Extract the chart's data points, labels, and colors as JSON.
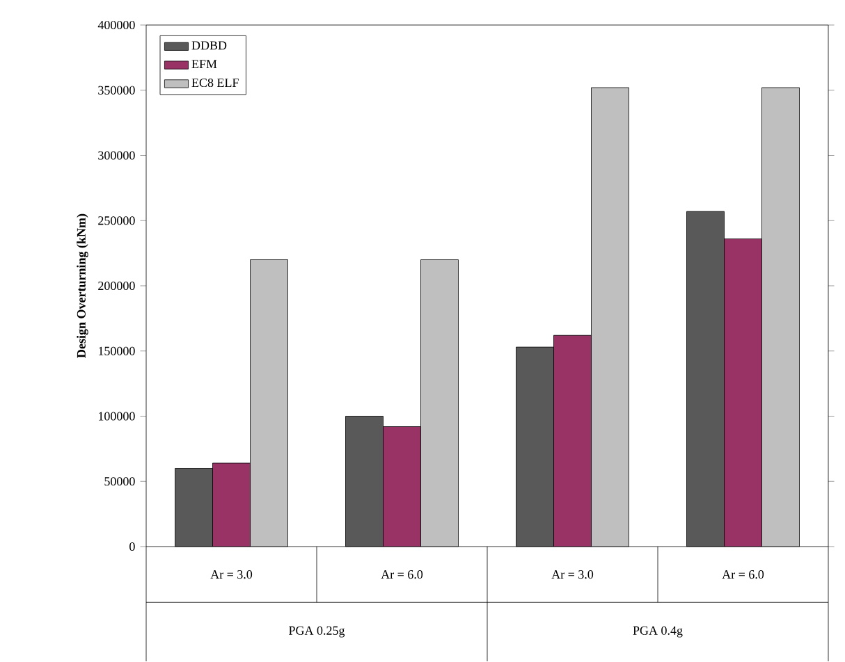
{
  "chart_data": {
    "type": "bar",
    "ylabel": "Design Overturning (kNm)",
    "categories": [
      "Ar = 3.0",
      "Ar = 6.0",
      "Ar = 3.0",
      "Ar = 6.0"
    ],
    "series": [
      {
        "name": "DDBD",
        "color": "#595959",
        "values": [
          60000,
          100000,
          153000,
          257000
        ]
      },
      {
        "name": "EFM",
        "color": "#993366",
        "values": [
          64000,
          92000,
          162000,
          236000
        ]
      },
      {
        "name": "EC8 ELF",
        "color": "#bfbfbf",
        "values": [
          220000,
          220000,
          352000,
          352000
        ]
      }
    ],
    "annotations": [
      "PGA 0.25g",
      "PGA 0.4g"
    ],
    "ylim": [
      0,
      400000
    ],
    "yticks": [
      0,
      50000,
      100000,
      150000,
      200000,
      250000,
      300000,
      350000,
      400000
    ],
    "legend": "top left"
  }
}
